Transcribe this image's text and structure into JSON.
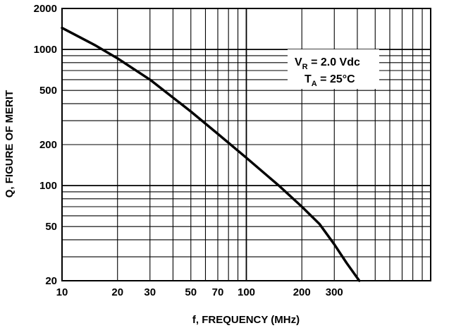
{
  "chart_data": {
    "type": "line",
    "title": "",
    "xlabel": "f, FREQUENCY (MHz)",
    "ylabel": "Q, FIGURE OF MERIT",
    "xscale": "log",
    "yscale": "log",
    "xlim": [
      10,
      1000
    ],
    "ylim": [
      20,
      2000
    ],
    "grid": true,
    "x_ticks": [
      10,
      20,
      30,
      50,
      70,
      100,
      200,
      300
    ],
    "x_tick_labels": [
      "10",
      "20",
      "30",
      "50",
      "70",
      "100",
      "200",
      "300"
    ],
    "y_ticks": [
      20,
      50,
      100,
      200,
      500,
      1000,
      2000
    ],
    "y_tick_labels": [
      "20",
      "50",
      "100",
      "200",
      "500",
      "1000",
      "2000"
    ],
    "annotation": {
      "line1_main": "V",
      "line1_sub": "R",
      "line1_rest": " = 2.0 Vdc",
      "line2_main": "T",
      "line2_sub": "A",
      "line2_rest": " = 25°C",
      "placement": "top-right"
    },
    "series": [
      {
        "x": [
          10,
          15,
          20,
          30,
          50,
          70,
          100,
          150,
          200,
          250,
          300,
          350,
          410
        ],
        "y": [
          1440,
          1080,
          860,
          600,
          350,
          240,
          160,
          100,
          70,
          52,
          37,
          27,
          20
        ]
      }
    ]
  }
}
